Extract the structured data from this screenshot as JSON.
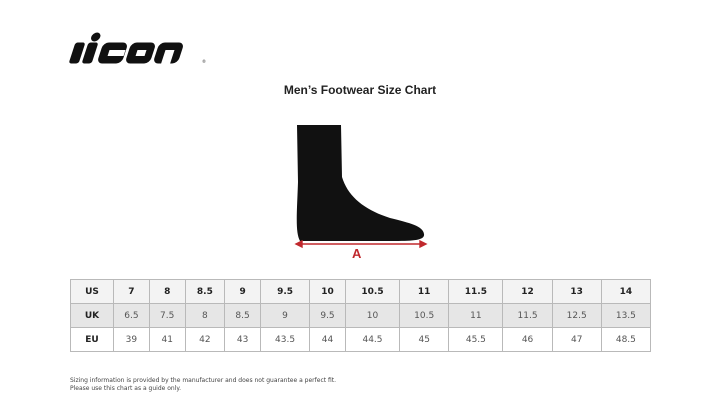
{
  "brand": {
    "logo_text": "icon"
  },
  "title": "Men’s Footwear Size Chart",
  "diagram": {
    "dimension_label": "A",
    "arrow_color": "#c0282d"
  },
  "table": {
    "rows": [
      {
        "label": "US",
        "values": [
          "7",
          "8",
          "8.5",
          "9",
          "9.5",
          "10",
          "10.5",
          "11",
          "11.5",
          "12",
          "13",
          "14"
        ]
      },
      {
        "label": "UK",
        "values": [
          "6.5",
          "7.5",
          "8",
          "8.5",
          "9",
          "9.5",
          "10",
          "10.5",
          "11",
          "11.5",
          "12.5",
          "13.5"
        ]
      },
      {
        "label": "EU",
        "values": [
          "39",
          "41",
          "42",
          "43",
          "43.5",
          "44",
          "44.5",
          "45",
          "45.5",
          "46",
          "47",
          "48.5"
        ]
      }
    ]
  },
  "note": {
    "line1": "Sizing information is provided by the manufacturer and does not guarantee a perfect fit.",
    "line2": "Please use this chart as a guide only."
  }
}
